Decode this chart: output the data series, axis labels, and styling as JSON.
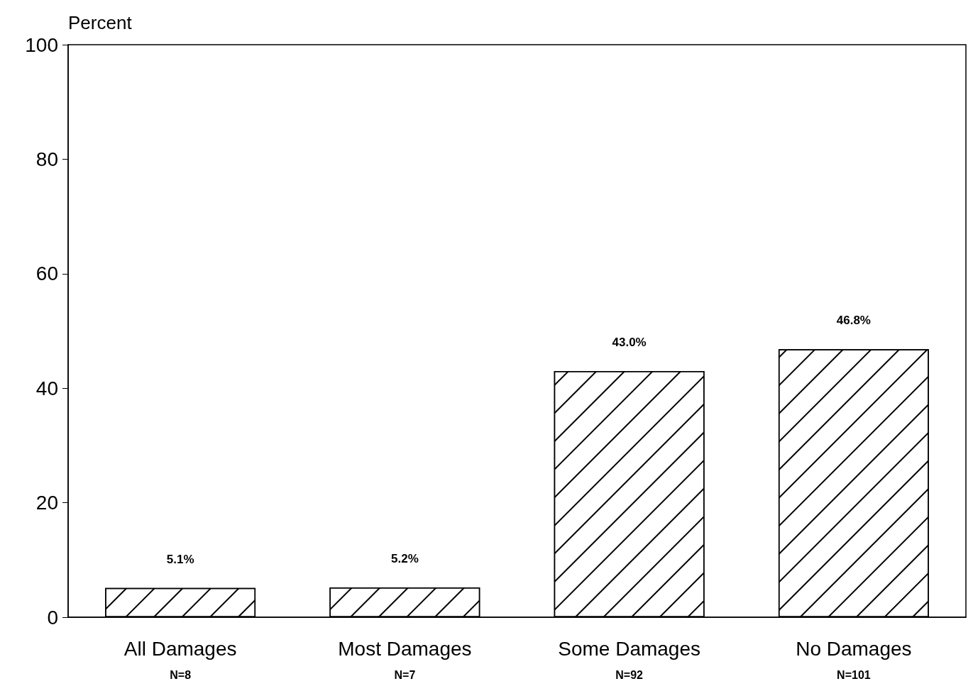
{
  "chart_data": {
    "type": "bar",
    "ylabel": "Percent",
    "categories": [
      "All Damages",
      "Most Damages",
      "Some Damages",
      "No Damages"
    ],
    "values": [
      5.1,
      5.2,
      43.0,
      46.8
    ],
    "value_labels": [
      "5.1%",
      "5.2%",
      "43.0%",
      "46.8%"
    ],
    "color": "#ffffff",
    "ylim": [
      0,
      100
    ],
    "yticks": [
      0,
      20,
      40,
      60,
      80,
      100
    ],
    "grid": false,
    "annotations": [
      "N=8",
      "N=7",
      "N=92",
      "N=101"
    ]
  }
}
